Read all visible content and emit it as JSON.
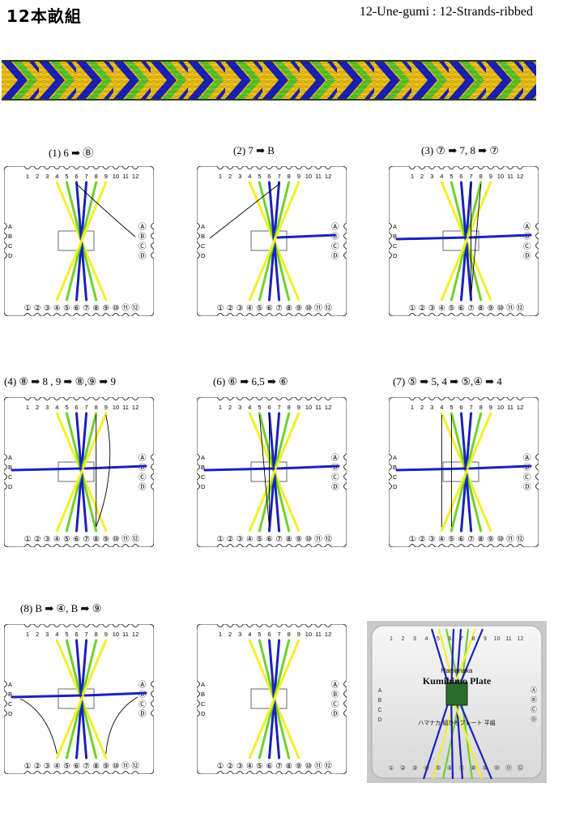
{
  "header": {
    "title_jp": "12本畝組",
    "title_en": "12-Une-gumi : 12-Strands-ribbed"
  },
  "colors": {
    "yellow": "#f4ef2a",
    "green": "#6ed12f",
    "blue": "#1a22b8",
    "braid_bg": "#f0c21a"
  },
  "plate": {
    "top_numbers": [
      "1",
      "2",
      "3",
      "4",
      "5",
      "6",
      "7",
      "8",
      "9",
      "10",
      "11",
      "12"
    ],
    "bottom_numbers": [
      "①",
      "②",
      "③",
      "④",
      "⑤",
      "⑥",
      "⑦",
      "⑧",
      "⑨",
      "⑩",
      "⑪",
      "⑫"
    ],
    "left_letters": [
      "A",
      "B",
      "C",
      "D"
    ],
    "right_letters": [
      "Ⓐ",
      "Ⓑ",
      "Ⓒ",
      "Ⓓ"
    ]
  },
  "steps": [
    {
      "label": "(1) 6 ➡ Ⓑ"
    },
    {
      "label": "(2) 7 ➡ B"
    },
    {
      "label": "(3) ⑦ ➡ 7, 8 ➡ ⑦"
    },
    {
      "label": "(4) ⑧ ➡ 8 , 9 ➡ ⑧,⑨ ➡ 9"
    },
    {
      "label": "(6) ⑥ ➡ 6,5 ➡ ⑥"
    },
    {
      "label": "(7) ⑤ ➡ 5, 4 ➡ ⑤,④ ➡ 4"
    },
    {
      "label": "(8) B ➡ ④, B ➡ ⑨"
    },
    {
      "label": ""
    }
  ],
  "photo": {
    "brand": "Hamanaka",
    "name": "Kumihimo Plate",
    "subtitle": "ハマナカ 組ひもプレート 平組",
    "top_numbers": [
      "1",
      "2",
      "3",
      "4",
      "5",
      "6",
      "7",
      "8",
      "9",
      "10",
      "11",
      "12"
    ],
    "bottom_numbers": [
      "①",
      "②",
      "③",
      "④",
      "⑤",
      "⑥",
      "⑦",
      "⑧",
      "⑨",
      "⑩",
      "⑪",
      "⑫"
    ],
    "left_letters": [
      "A",
      "B",
      "C",
      "D"
    ],
    "right_letters": [
      "Ⓐ",
      "Ⓑ",
      "Ⓒ",
      "Ⓓ"
    ]
  }
}
